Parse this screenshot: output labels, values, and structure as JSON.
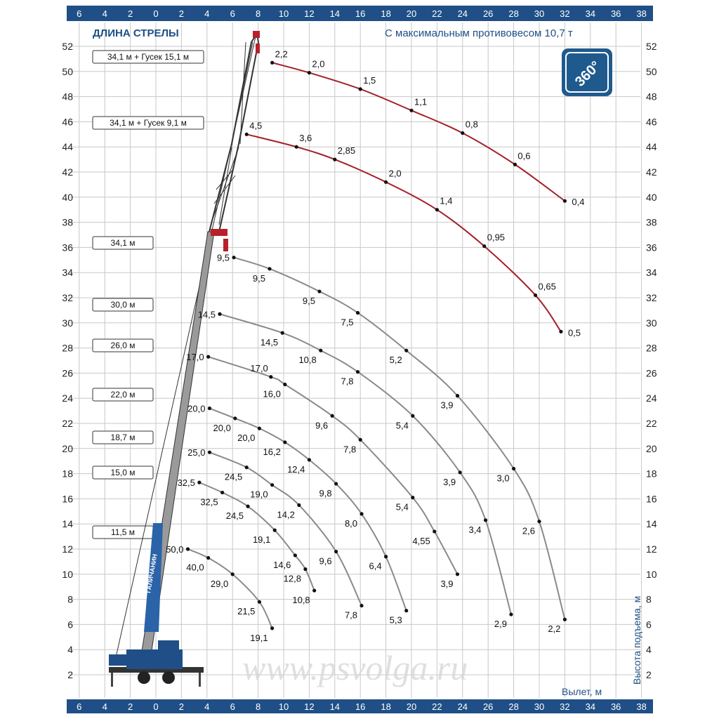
{
  "header": {
    "boom_length_title": "ДЛИНА СТРЕЛЫ",
    "counterweight_note": "С максимальным противовесом 10,7 т",
    "rotation_badge": "360°"
  },
  "watermark": "www.psvolga.ru",
  "crane_brand": "ГАЛИЧАНИН",
  "colors": {
    "axis_bar": "#1f4f86",
    "grid": "#c8c8c8",
    "jib_curve": "#a3202a",
    "boom_curve": "#8a8a8a",
    "title": "#1f4f86"
  },
  "chart_data": {
    "type": "line",
    "title": "",
    "xlabel": "Вылет, м",
    "ylabel": "Высота подъема, м",
    "xlim": [
      -7,
      39
    ],
    "ylim": [
      0,
      53
    ],
    "grid": true,
    "x_ticks": [
      "6",
      "4",
      "2",
      "0",
      "2",
      "4",
      "6",
      "8",
      "10",
      "12",
      "14",
      "16",
      "18",
      "20",
      "22",
      "24",
      "26",
      "28",
      "30",
      "32",
      "34",
      "36",
      "38"
    ],
    "y_ticks": [
      "2",
      "4",
      "6",
      "8",
      "10",
      "12",
      "14",
      "16",
      "18",
      "20",
      "22",
      "24",
      "26",
      "28",
      "30",
      "32",
      "34",
      "36",
      "38",
      "40",
      "42",
      "44",
      "46",
      "48",
      "50",
      "52"
    ],
    "series": [
      {
        "name": "34,1 м + Гусек 15,1 м",
        "kind": "jib",
        "points": [
          {
            "x": 9.1,
            "y": 50.7,
            "load": "2,2"
          },
          {
            "x": 12.0,
            "y": 49.9,
            "load": "2,0"
          },
          {
            "x": 16.0,
            "y": 48.6,
            "load": "1,5"
          },
          {
            "x": 20.0,
            "y": 46.9,
            "load": "1,1"
          },
          {
            "x": 24.0,
            "y": 45.1,
            "load": "0,8"
          },
          {
            "x": 28.1,
            "y": 42.6,
            "load": "0,6"
          },
          {
            "x": 32.0,
            "y": 39.7,
            "load": "0,4"
          }
        ]
      },
      {
        "name": "34,1 м + Гусек 9,1 м",
        "kind": "jib",
        "points": [
          {
            "x": 7.1,
            "y": 45.0,
            "load": "4,5"
          },
          {
            "x": 11.0,
            "y": 44.0,
            "load": "3,6"
          },
          {
            "x": 14.0,
            "y": 43.0,
            "load": "2,85"
          },
          {
            "x": 18.0,
            "y": 41.2,
            "load": "2,0"
          },
          {
            "x": 22.0,
            "y": 39.0,
            "load": "1,4"
          },
          {
            "x": 25.7,
            "y": 36.1,
            "load": "0,95"
          },
          {
            "x": 29.7,
            "y": 32.2,
            "load": "0,65"
          },
          {
            "x": 31.7,
            "y": 29.3,
            "load": "0,5"
          }
        ]
      },
      {
        "name": "34,1 м",
        "kind": "boom",
        "points": [
          {
            "x": 6.1,
            "y": 35.2,
            "load": "9,5"
          },
          {
            "x": 8.9,
            "y": 34.3,
            "load": "9,5"
          },
          {
            "x": 12.8,
            "y": 32.5,
            "load": "9,5"
          },
          {
            "x": 15.8,
            "y": 30.8,
            "load": "7,5"
          },
          {
            "x": 19.6,
            "y": 27.8,
            "load": "5,2"
          },
          {
            "x": 23.6,
            "y": 24.2,
            "load": "3,9"
          },
          {
            "x": 28.0,
            "y": 18.4,
            "load": "3,0"
          },
          {
            "x": 30.0,
            "y": 14.2,
            "load": "2,6"
          },
          {
            "x": 32.0,
            "y": 6.4,
            "load": "2,2"
          }
        ]
      },
      {
        "name": "30,0 м",
        "kind": "boom",
        "points": [
          {
            "x": 5.0,
            "y": 30.7,
            "load": "14,5"
          },
          {
            "x": 9.9,
            "y": 29.2,
            "load": "14,5"
          },
          {
            "x": 12.9,
            "y": 27.8,
            "load": "10,8"
          },
          {
            "x": 15.8,
            "y": 26.1,
            "load": "7,8"
          },
          {
            "x": 20.1,
            "y": 22.6,
            "load": "5,4"
          },
          {
            "x": 23.8,
            "y": 18.1,
            "load": "3,9"
          },
          {
            "x": 25.8,
            "y": 14.3,
            "load": "3,4"
          },
          {
            "x": 27.8,
            "y": 6.8,
            "load": "2,9"
          }
        ]
      },
      {
        "name": "26,0 м",
        "kind": "boom",
        "points": [
          {
            "x": 4.1,
            "y": 27.3,
            "load": "17,0"
          },
          {
            "x": 9.0,
            "y": 25.7,
            "load": "17,0"
          },
          {
            "x": 10.1,
            "y": 25.1,
            "load": "16,0"
          },
          {
            "x": 13.8,
            "y": 22.6,
            "load": "9,6"
          },
          {
            "x": 16.0,
            "y": 20.7,
            "load": "7,8"
          },
          {
            "x": 20.1,
            "y": 16.1,
            "load": "5,4"
          },
          {
            "x": 21.8,
            "y": 13.4,
            "load": "4,55"
          },
          {
            "x": 23.6,
            "y": 10.0,
            "load": "3,9"
          }
        ]
      },
      {
        "name": "22,0 м",
        "kind": "boom",
        "points": [
          {
            "x": 4.2,
            "y": 23.2,
            "load": "20,0"
          },
          {
            "x": 6.2,
            "y": 22.4,
            "load": "20,0"
          },
          {
            "x": 8.1,
            "y": 21.6,
            "load": "20,0"
          },
          {
            "x": 10.1,
            "y": 20.5,
            "load": "16,2"
          },
          {
            "x": 12.0,
            "y": 19.1,
            "load": "12,4"
          },
          {
            "x": 14.1,
            "y": 17.2,
            "load": "9,8"
          },
          {
            "x": 16.1,
            "y": 14.8,
            "load": "8,0"
          },
          {
            "x": 18.0,
            "y": 11.4,
            "load": "6,4"
          },
          {
            "x": 19.6,
            "y": 7.1,
            "load": "5,3"
          }
        ]
      },
      {
        "name": "18,7 м",
        "kind": "boom",
        "points": [
          {
            "x": 4.2,
            "y": 19.7,
            "load": "25,0"
          },
          {
            "x": 7.1,
            "y": 18.5,
            "load": "24,5"
          },
          {
            "x": 9.1,
            "y": 17.1,
            "load": "19,0"
          },
          {
            "x": 11.2,
            "y": 15.5,
            "load": "14,2"
          },
          {
            "x": 14.1,
            "y": 11.8,
            "load": "9,6"
          },
          {
            "x": 16.1,
            "y": 7.5,
            "load": "7,8"
          }
        ]
      },
      {
        "name": "15,0 м",
        "kind": "boom",
        "points": [
          {
            "x": 3.4,
            "y": 17.3,
            "load": "32,5"
          },
          {
            "x": 5.2,
            "y": 16.5,
            "load": "32,5"
          },
          {
            "x": 7.2,
            "y": 15.4,
            "load": "24,5"
          },
          {
            "x": 9.3,
            "y": 13.5,
            "load": "19,1"
          },
          {
            "x": 10.9,
            "y": 11.5,
            "load": "14,6"
          },
          {
            "x": 11.7,
            "y": 10.4,
            "load": "12,8"
          },
          {
            "x": 12.4,
            "y": 8.7,
            "load": "10,8"
          }
        ]
      },
      {
        "name": "11,5 м",
        "kind": "boom",
        "points": [
          {
            "x": 2.5,
            "y": 12.0,
            "load": "50,0"
          },
          {
            "x": 4.1,
            "y": 11.3,
            "load": "40,0"
          },
          {
            "x": 6.0,
            "y": 10.0,
            "load": "29,0"
          },
          {
            "x": 8.1,
            "y": 7.8,
            "load": "21,5"
          },
          {
            "x": 9.1,
            "y": 5.7,
            "load": "19,1"
          }
        ]
      }
    ]
  }
}
